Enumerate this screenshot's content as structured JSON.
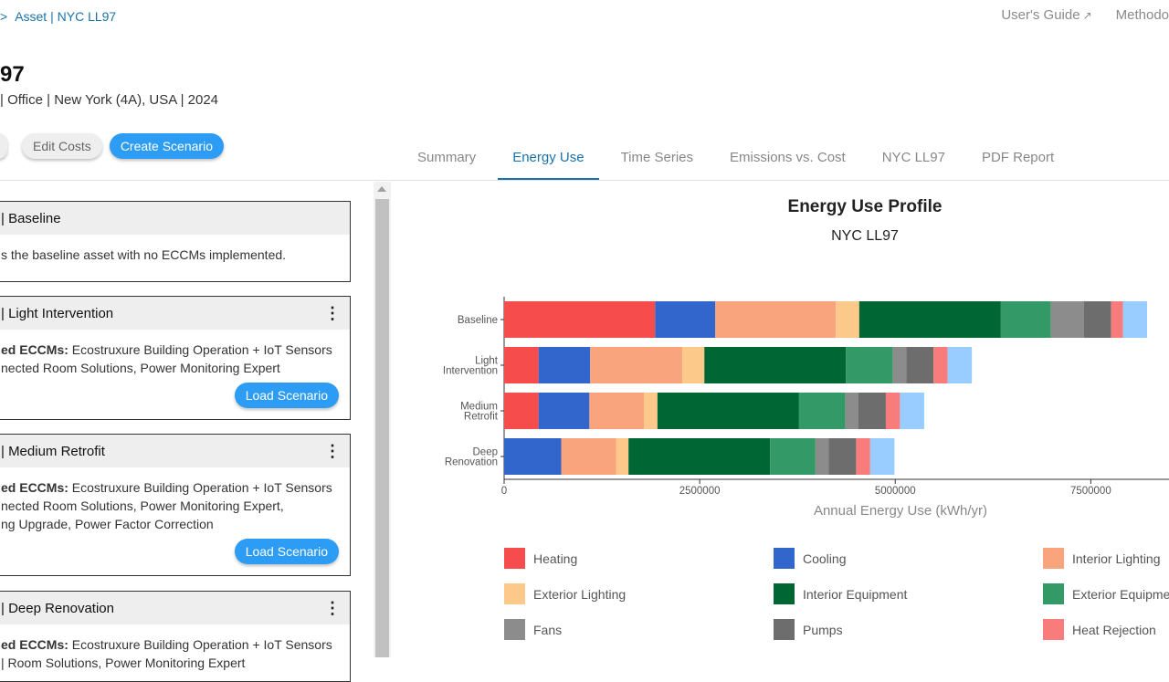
{
  "breadcrumb": {
    "chevron": ">",
    "text": "Asset | NYC LL97"
  },
  "topnav": {
    "users_guide": "User's Guide",
    "methodology": "Methodo"
  },
  "page": {
    "title": "97",
    "subtitle": "| Office | New York (4A), USA | 2024"
  },
  "actions": {
    "edit_costs": "Edit Costs",
    "create_scenario": "Create Scenario"
  },
  "tabs": [
    "Summary",
    "Energy Use",
    "Time Series",
    "Emissions vs. Cost",
    "NYC LL97",
    "PDF Report"
  ],
  "active_tab": "Energy Use",
  "scenarios": [
    {
      "title": "| Baseline",
      "lines": [
        "s the baseline asset with no ECCMs implemented."
      ],
      "has_menu": false,
      "load_label": ""
    },
    {
      "title": "| Light Intervention",
      "ecm_label": "ed ECCMs:",
      "lines": [
        " Ecostruxure Building Operation + IoT Sensors",
        "nected Room Solutions, Power Monitoring Expert"
      ],
      "has_menu": true,
      "load_label": "Load Scenario"
    },
    {
      "title": "| Medium Retrofit",
      "ecm_label": "ed ECCMs:",
      "lines": [
        " Ecostruxure Building Operation + IoT Sensors",
        "nected Room Solutions, Power Monitoring Expert,",
        "ng Upgrade, Power Factor Correction"
      ],
      "has_menu": true,
      "load_label": "Load Scenario"
    },
    {
      "title": "| Deep Renovation",
      "ecm_label": "ed ECCMs:",
      "lines": [
        " Ecostruxure Building Operation + IoT Sensors",
        "| Room Solutions, Power Monitoring Expert"
      ],
      "has_menu": true,
      "load_label": ""
    }
  ],
  "chart_data": {
    "type": "bar",
    "orientation": "horizontal",
    "stacked": true,
    "title": "Energy Use Profile",
    "subtitle": "NYC LL97",
    "xlabel": "Annual Energy Use (kWh/yr)",
    "xlim": [
      0,
      8500000
    ],
    "xticks": [
      0,
      2500000,
      5000000,
      7500000
    ],
    "categories": [
      [
        "Baseline"
      ],
      [
        "Light",
        "Intervention"
      ],
      [
        "Medium",
        "Retrofit"
      ],
      [
        "Deep",
        "Renovation"
      ]
    ],
    "series": [
      {
        "name": "Heating",
        "color": "#f64c4c",
        "values": [
          1930000,
          440000,
          440000,
          0
        ]
      },
      {
        "name": "Cooling",
        "color": "#3366cc",
        "values": [
          770000,
          660000,
          650000,
          730000
        ]
      },
      {
        "name": "Interior Lighting",
        "color": "#f9a47c",
        "values": [
          1540000,
          1180000,
          700000,
          700000
        ]
      },
      {
        "name": "Exterior Lighting",
        "color": "#fdc98a",
        "values": [
          300000,
          280000,
          170000,
          160000
        ]
      },
      {
        "name": "Interior Equipment",
        "color": "#006633",
        "values": [
          1810000,
          1810000,
          1810000,
          1810000
        ]
      },
      {
        "name": "Exterior Equipment",
        "color": "#339966",
        "values": [
          640000,
          600000,
          590000,
          580000
        ]
      },
      {
        "name": "Fans",
        "color": "#8c8c8c",
        "values": [
          420000,
          170000,
          170000,
          170000
        ]
      },
      {
        "name": "Pumps",
        "color": "#6d6d6d",
        "values": [
          350000,
          350000,
          350000,
          350000
        ]
      },
      {
        "name": "Heat Rejection",
        "color": "#f87c7c",
        "values": [
          150000,
          180000,
          180000,
          180000
        ]
      },
      {
        "name": "",
        "color": "#99ccff",
        "values": [
          310000,
          310000,
          310000,
          310000
        ]
      }
    ],
    "legend": [
      "Heating",
      "Cooling",
      "Interior Lighting",
      "Exterior Lighting",
      "Interior Equipment",
      "Exterior Equipmen",
      "Fans",
      "Pumps",
      "Heat Rejection"
    ]
  }
}
